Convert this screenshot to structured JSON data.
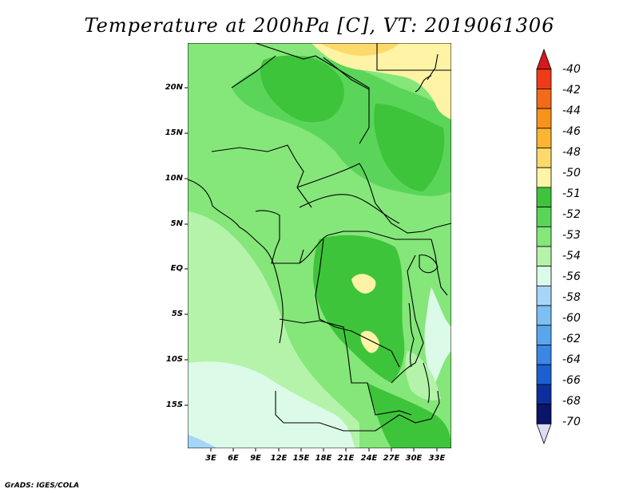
{
  "title": "Temperature at 200hPa [C], VT: 2019061306",
  "credit": "GrADS: IGES/COLA",
  "map": {
    "lat_labels": [
      "20N",
      "15N",
      "10N",
      "5N",
      "EQ",
      "5S",
      "10S",
      "15S"
    ],
    "lon_labels": [
      "3E",
      "6E",
      "9E",
      "12E",
      "15E",
      "18E",
      "21E",
      "24E",
      "27E",
      "30E",
      "33E"
    ]
  },
  "colorbar": {
    "labels": [
      "-40",
      "-42",
      "-44",
      "-46",
      "-48",
      "-50",
      "-51",
      "-52",
      "-53",
      "-54",
      "-56",
      "-58",
      "-60",
      "-62",
      "-64",
      "-66",
      "-68",
      "-70"
    ],
    "colors": [
      "#d7191c",
      "#ef3b1a",
      "#f36a18",
      "#f7921a",
      "#fbb531",
      "#fcd96b",
      "#fff3a6",
      "#3ec43a",
      "#5ad55a",
      "#85e67a",
      "#b4f3a9",
      "#dcfae8",
      "#a5d6f7",
      "#7dbff2",
      "#5aa6ec",
      "#3a86e2",
      "#1c5fd0",
      "#0c2f9e",
      "#0a1469"
    ],
    "bottom_cap_color": "#dcdcf5"
  }
}
